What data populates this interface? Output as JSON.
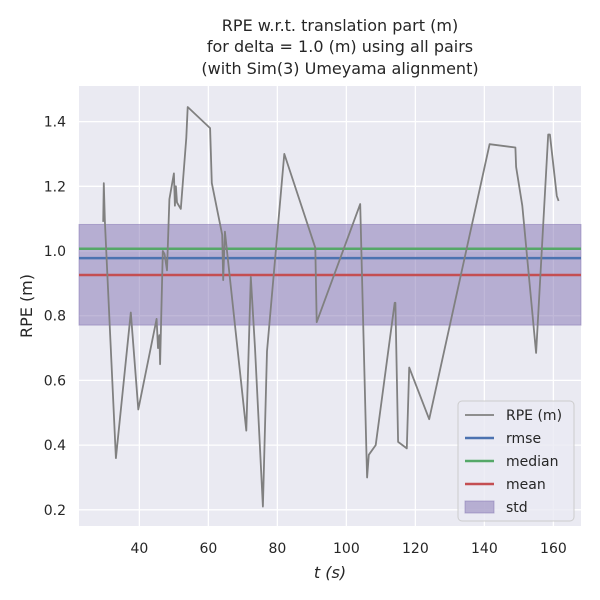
{
  "chart_data": {
    "type": "line",
    "title": [
      "RPE w.r.t. translation part (m)",
      "for delta = 1.0 (m) using all pairs",
      "(with Sim(3) Umeyama alignment)"
    ],
    "xlabel": "t (s)",
    "ylabel": "RPE (m)",
    "xlim": [
      22.5,
      168
    ],
    "ylim": [
      0.15,
      1.51
    ],
    "xticks": [
      40,
      60,
      80,
      100,
      120,
      140,
      160
    ],
    "yticks": [
      0.2,
      0.4,
      0.6,
      0.8,
      1.0,
      1.2,
      1.4
    ],
    "grid": true,
    "background": "#eaeaf2",
    "legend_position": "lower right",
    "series": [
      {
        "name": "RPE (m)",
        "color": "#808080",
        "x": [
          29.5,
          29.7,
          30.0,
          33.2,
          37.5,
          39.7,
          45.0,
          45.4,
          45.8,
          46.0,
          46.8,
          47.3,
          48.0,
          48.7,
          50.0,
          50.3,
          50.6,
          50.9,
          52.0,
          53.6,
          54.0,
          60.5,
          61.0,
          64.0,
          64.3,
          64.8,
          71.0,
          72.3,
          73.5,
          75.8,
          77.0,
          82.0,
          91.0,
          91.4,
          104.0,
          105.8,
          106.0,
          106.5,
          108.5,
          114.0,
          114.2,
          115.0,
          117.5,
          118.2,
          124.0,
          141.5,
          149.0,
          149.2,
          151.0,
          155.0,
          158.5,
          159.0,
          161.0,
          161.5
        ],
        "y": [
          1.09,
          1.21,
          1.09,
          0.36,
          0.81,
          0.51,
          0.79,
          0.7,
          0.74,
          0.65,
          1.0,
          0.99,
          0.94,
          1.16,
          1.24,
          1.14,
          1.2,
          1.15,
          1.13,
          1.35,
          1.445,
          1.38,
          1.21,
          1.05,
          0.91,
          1.06,
          0.445,
          0.92,
          0.7,
          0.21,
          0.69,
          1.3,
          1.01,
          0.78,
          1.145,
          0.38,
          0.3,
          0.37,
          0.4,
          0.84,
          0.84,
          0.41,
          0.39,
          0.64,
          0.48,
          1.33,
          1.32,
          1.26,
          1.14,
          0.685,
          1.36,
          1.36,
          1.17,
          1.155
        ]
      },
      {
        "name": "rmse",
        "color": "#4c72b0",
        "value": 0.978
      },
      {
        "name": "median",
        "color": "#55a868",
        "value": 1.007
      },
      {
        "name": "mean",
        "color": "#c44e52",
        "value": 0.926
      },
      {
        "name": "std",
        "color": "#8172b2",
        "band": [
          0.771,
          1.082
        ]
      }
    ]
  }
}
